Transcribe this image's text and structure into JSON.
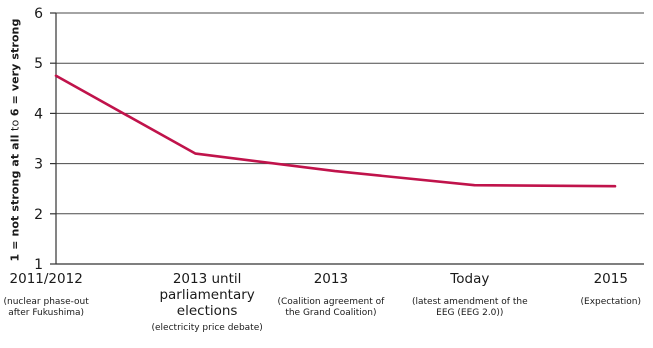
{
  "chart_data": {
    "type": "line",
    "ylabel_parts": [
      {
        "text": "1 = not strong at all",
        "weight": "bold"
      },
      {
        "text": " to ",
        "weight": "normal"
      },
      {
        "text": "6 = very strong",
        "weight": "bold"
      }
    ],
    "ylim": [
      1,
      6
    ],
    "yticks": [
      1,
      2,
      3,
      4,
      5,
      6
    ],
    "grid": true,
    "categories": [
      {
        "main": [
          "2011/2012"
        ],
        "sub": [
          "(nuclear phase-out",
          "after Fukushima)"
        ]
      },
      {
        "main": [
          "2013 until",
          "parliamentary",
          "elections"
        ],
        "sub": [
          "(electricity price debate)"
        ]
      },
      {
        "main": [
          "2013"
        ],
        "sub": [
          "(Coalition agreement of",
          "the Grand Coalition)"
        ]
      },
      {
        "main": [
          "Today"
        ],
        "sub": [
          "(latest amendment of the",
          "EEG (EEG 2.0))"
        ]
      },
      {
        "main": [
          "2015"
        ],
        "sub": [
          "(Expectation)"
        ]
      }
    ],
    "series": [
      {
        "values": [
          4.75,
          3.2,
          2.85,
          2.57,
          2.55
        ],
        "color": "#c0134b"
      }
    ]
  }
}
